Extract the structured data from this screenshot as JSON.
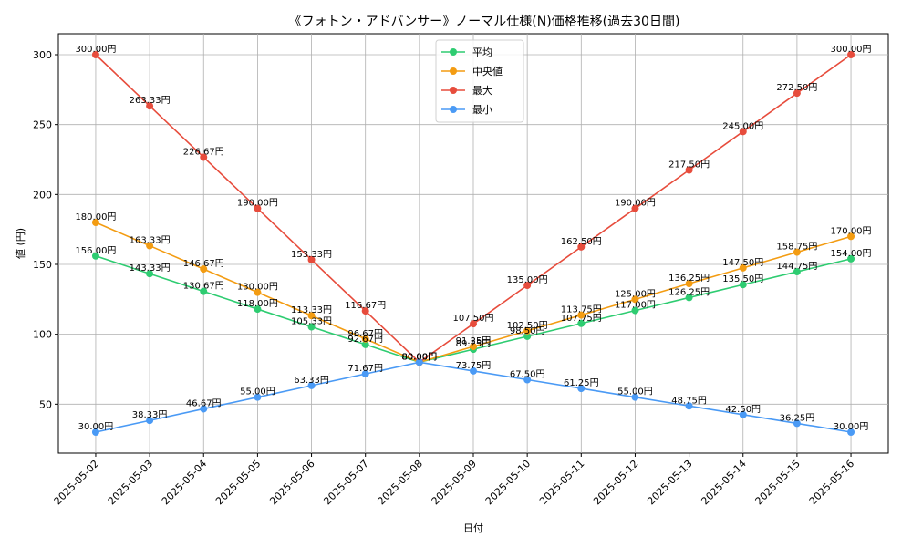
{
  "chart_data": {
    "type": "line",
    "title": "《フォトン・アドバンサー》ノーマル仕様(N)価格推移(過去30日間)",
    "xlabel": "日付",
    "ylabel": "値 (円)",
    "ylim": [
      15,
      315
    ],
    "yticks": [
      50,
      100,
      150,
      200,
      250,
      300
    ],
    "grid": true,
    "legend_position": "top-center",
    "label_suffix": "円",
    "x": [
      "2025-05-02",
      "2025-05-03",
      "2025-05-04",
      "2025-05-05",
      "2025-05-06",
      "2025-05-07",
      "2025-05-08",
      "2025-05-09",
      "2025-05-10",
      "2025-05-11",
      "2025-05-12",
      "2025-05-13",
      "2025-05-14",
      "2025-05-15",
      "2025-05-16"
    ],
    "series": [
      {
        "name": "平均",
        "color": "#2ecc71",
        "values": [
          156.0,
          143.33,
          130.67,
          118.0,
          105.33,
          92.67,
          80.0,
          89.25,
          98.5,
          107.75,
          117.0,
          126.25,
          135.5,
          144.75,
          154.0
        ]
      },
      {
        "name": "中央値",
        "color": "#f39c12",
        "values": [
          180.0,
          163.33,
          146.67,
          130.0,
          113.33,
          96.67,
          80.0,
          91.25,
          102.5,
          113.75,
          125.0,
          136.25,
          147.5,
          158.75,
          170.0
        ]
      },
      {
        "name": "最大",
        "color": "#e74c3c",
        "values": [
          300.0,
          263.33,
          226.67,
          190.0,
          153.33,
          116.67,
          80.0,
          107.5,
          135.0,
          162.5,
          190.0,
          217.5,
          245.0,
          272.5,
          300.0
        ]
      },
      {
        "name": "最小",
        "color": "#4a9af5",
        "values": [
          30.0,
          38.33,
          46.67,
          55.0,
          63.33,
          71.67,
          80.0,
          73.75,
          67.5,
          61.25,
          55.0,
          48.75,
          42.5,
          36.25,
          30.0
        ]
      }
    ]
  }
}
